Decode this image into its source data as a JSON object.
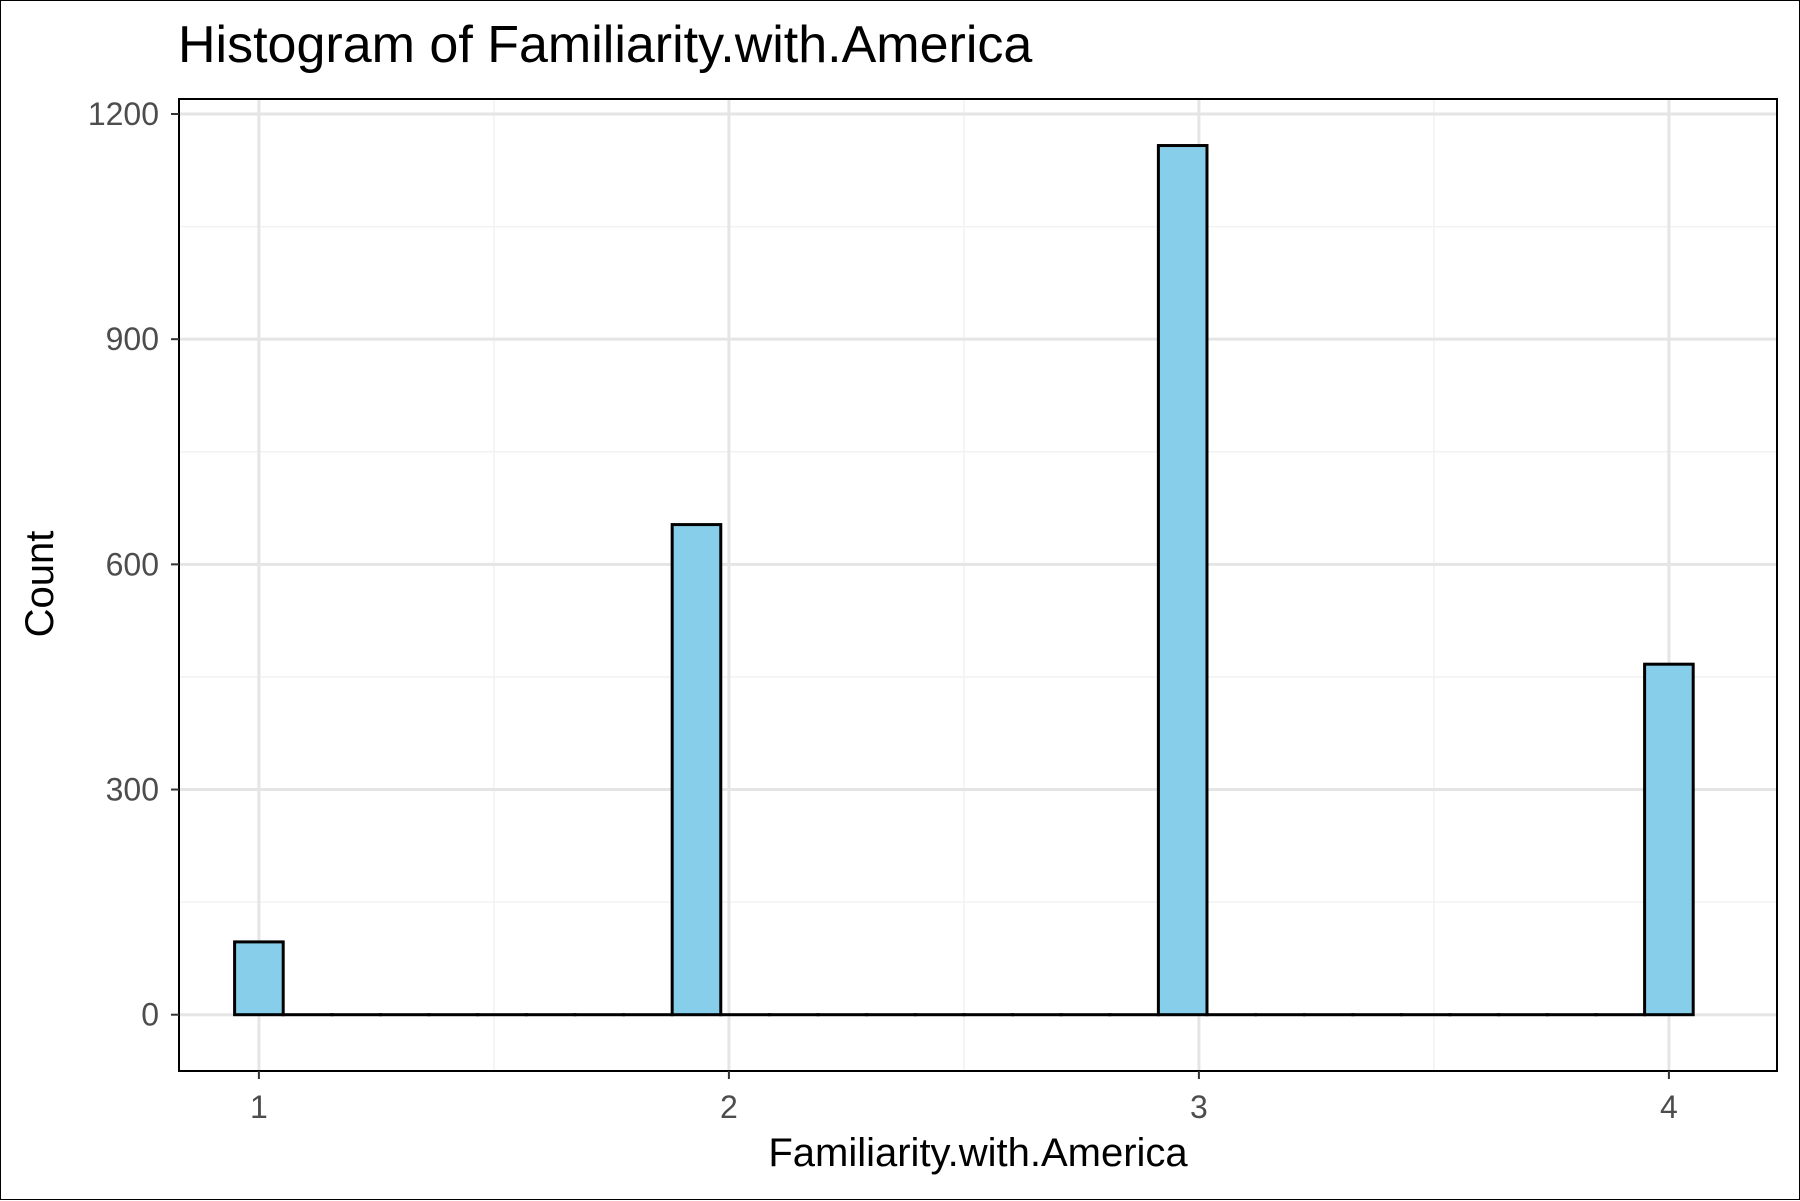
{
  "chart_data": {
    "type": "bar",
    "title": "Histogram of Familiarity.with.America",
    "xlabel": "Familiarity.with.America",
    "ylabel": "Count",
    "xlim": [
      0.83,
      4.23
    ],
    "ylim": [
      -75,
      1220
    ],
    "x_ticks": [
      1,
      2,
      3,
      4
    ],
    "y_ticks": [
      0,
      300,
      600,
      900,
      1200
    ],
    "x_minor_ticks": [
      1.5,
      2.5,
      3.5
    ],
    "y_minor_ticks": [
      150,
      450,
      750,
      1050
    ],
    "bin_width": 0.1034,
    "bins": [
      {
        "x": 1,
        "count": 97
      },
      {
        "x": 1.1034,
        "count": 0
      },
      {
        "x": 1.2069,
        "count": 0
      },
      {
        "x": 1.3103,
        "count": 0
      },
      {
        "x": 1.4138,
        "count": 0
      },
      {
        "x": 1.5172,
        "count": 0
      },
      {
        "x": 1.6207,
        "count": 0
      },
      {
        "x": 1.7241,
        "count": 0
      },
      {
        "x": 1.8276,
        "count": 0
      },
      {
        "x": 1.931,
        "count": 653
      },
      {
        "x": 2.0345,
        "count": 0
      },
      {
        "x": 2.1379,
        "count": 0
      },
      {
        "x": 2.2414,
        "count": 0
      },
      {
        "x": 2.3448,
        "count": 0
      },
      {
        "x": 2.4483,
        "count": 0
      },
      {
        "x": 2.5517,
        "count": 0
      },
      {
        "x": 2.6552,
        "count": 0
      },
      {
        "x": 2.7586,
        "count": 0
      },
      {
        "x": 2.8621,
        "count": 0
      },
      {
        "x": 2.9655,
        "count": 1158
      },
      {
        "x": 3.069,
        "count": 0
      },
      {
        "x": 3.1724,
        "count": 0
      },
      {
        "x": 3.2759,
        "count": 0
      },
      {
        "x": 3.3793,
        "count": 0
      },
      {
        "x": 3.4828,
        "count": 0
      },
      {
        "x": 3.5862,
        "count": 0
      },
      {
        "x": 3.6897,
        "count": 0
      },
      {
        "x": 3.7931,
        "count": 0
      },
      {
        "x": 3.8966,
        "count": 0
      },
      {
        "x": 4,
        "count": 467
      }
    ],
    "fill_color": "#87CEEB",
    "edge_color": "#000000",
    "grid": true,
    "grid_major_color": "#e5e5e5",
    "grid_minor_color": "#f2f2f2",
    "legend": "none"
  }
}
